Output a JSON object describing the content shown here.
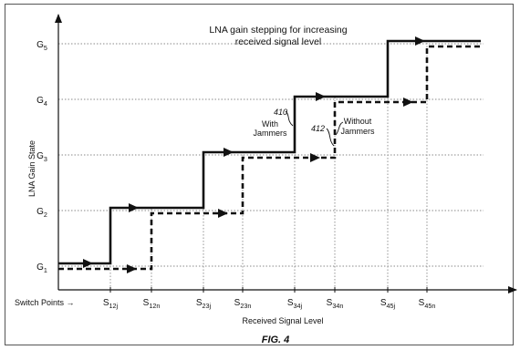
{
  "chart_data": {
    "type": "line",
    "title": [
      "LNA gain stepping for increasing",
      "received signal level"
    ],
    "xlabel": "Received Signal Level",
    "ylabel": "LNA Gain State",
    "y_ticks": [
      {
        "base": "G",
        "sub": "1"
      },
      {
        "base": "G",
        "sub": "2"
      },
      {
        "base": "G",
        "sub": "3"
      },
      {
        "base": "G",
        "sub": "4"
      },
      {
        "base": "G",
        "sub": "5"
      }
    ],
    "switch_points_label": "Switch Points",
    "x_ticks": [
      {
        "base": "S",
        "sub": "12j"
      },
      {
        "base": "S",
        "sub": "12n"
      },
      {
        "base": "S",
        "sub": "23j"
      },
      {
        "base": "S",
        "sub": "23n"
      },
      {
        "base": "S",
        "sub": "34j"
      },
      {
        "base": "S",
        "sub": "34n"
      },
      {
        "base": "S",
        "sub": "45j"
      },
      {
        "base": "S",
        "sub": "45n"
      }
    ],
    "series": [
      {
        "name": "With Jammers",
        "ref": "410",
        "style": "solid",
        "step_at": [
          "S12j",
          "S23j",
          "S34j",
          "S45j"
        ],
        "levels": [
          "G1",
          "G2",
          "G3",
          "G4",
          "G5"
        ]
      },
      {
        "name": "Without Jammers",
        "ref": "412",
        "style": "dashed",
        "step_at": [
          "S12n",
          "S23n",
          "S34n",
          "S45n"
        ],
        "levels": [
          "G1",
          "G2",
          "G3",
          "G4",
          "G5"
        ]
      }
    ],
    "annotations": {
      "with_ref": "410",
      "with_label": [
        "With",
        "Jammers"
      ],
      "without_ref": "412",
      "without_label": [
        "Without",
        "Jammers"
      ]
    },
    "grid": "dotted horizontal at gain levels, dotted vertical at switch points"
  },
  "figure_label": "FIG. 4",
  "colors": {
    "line": "#111111",
    "grid": "#8a8a8a",
    "frame": "#555555"
  }
}
